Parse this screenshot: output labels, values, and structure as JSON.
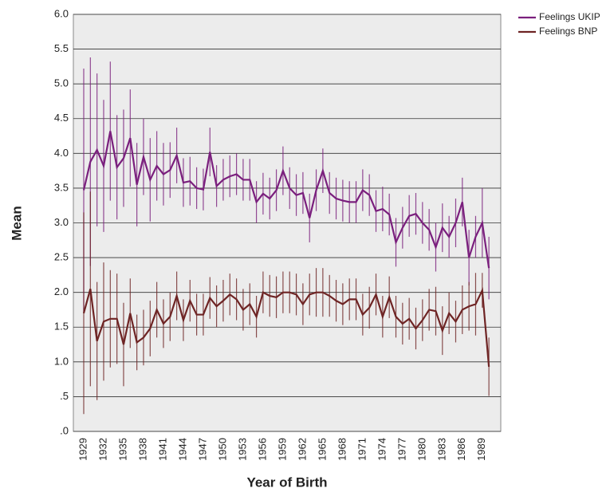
{
  "chart_data": {
    "type": "line",
    "xlabel": "Year of Birth",
    "ylabel": "Mean",
    "categories": [
      "1929",
      null,
      null,
      "1932",
      null,
      null,
      "1935",
      null,
      null,
      "1938",
      null,
      null,
      "1941",
      null,
      null,
      "1944",
      null,
      null,
      "1947",
      null,
      null,
      "1950",
      null,
      null,
      "1953",
      null,
      null,
      "1956",
      null,
      null,
      "1959",
      null,
      null,
      "1962",
      null,
      null,
      "1965",
      null,
      null,
      "1968",
      null,
      null,
      "1971",
      null,
      null,
      "1974",
      null,
      null,
      "1977",
      null,
      null,
      "1980",
      null,
      null,
      "1983",
      null,
      null,
      "1986",
      null,
      null,
      "1989",
      null
    ],
    "ylim": [
      0,
      6
    ],
    "yticks": [
      {
        "value": 0,
        "label": ".0"
      },
      {
        "value": 0.5,
        "label": ".5"
      },
      {
        "value": 1,
        "label": "1.0"
      },
      {
        "value": 1.5,
        "label": "1.5"
      },
      {
        "value": 2,
        "label": "2.0"
      },
      {
        "value": 2.5,
        "label": "2.5"
      },
      {
        "value": 3,
        "label": "3.0"
      },
      {
        "value": 3.5,
        "label": "3.5"
      },
      {
        "value": 4,
        "label": "4.0"
      },
      {
        "value": 4.5,
        "label": "4.5"
      },
      {
        "value": 5,
        "label": "5.0"
      },
      {
        "value": 5.5,
        "label": "5.5"
      },
      {
        "value": 6,
        "label": "6.0"
      }
    ],
    "grid": true,
    "legend": "upper right",
    "series": [
      {
        "name": "Feelings UKIP",
        "color": "#7a1f7d",
        "values": [
          3.47,
          3.88,
          4.05,
          3.82,
          4.32,
          3.8,
          3.93,
          4.22,
          3.55,
          3.95,
          3.62,
          3.82,
          3.7,
          3.76,
          3.97,
          3.58,
          3.6,
          3.5,
          3.48,
          4.02,
          3.53,
          3.62,
          3.67,
          3.7,
          3.62,
          3.62,
          3.3,
          3.42,
          3.35,
          3.47,
          3.75,
          3.5,
          3.4,
          3.43,
          3.07,
          3.47,
          3.75,
          3.43,
          3.35,
          3.32,
          3.3,
          3.3,
          3.47,
          3.4,
          3.17,
          3.2,
          3.12,
          2.72,
          2.93,
          3.1,
          3.13,
          3.0,
          2.9,
          2.65,
          2.93,
          2.8,
          3.0,
          3.3,
          2.5,
          2.8,
          3.0,
          2.35
        ],
        "errors": [
          1.75,
          1.5,
          1.1,
          0.95,
          1.0,
          0.75,
          0.7,
          0.7,
          0.6,
          0.55,
          0.6,
          0.5,
          0.45,
          0.4,
          0.4,
          0.35,
          0.35,
          0.3,
          0.3,
          0.35,
          0.3,
          0.3,
          0.3,
          0.3,
          0.3,
          0.3,
          0.3,
          0.3,
          0.3,
          0.3,
          0.35,
          0.3,
          0.3,
          0.3,
          0.35,
          0.3,
          0.32,
          0.3,
          0.3,
          0.3,
          0.3,
          0.3,
          0.3,
          0.3,
          0.3,
          0.32,
          0.3,
          0.35,
          0.3,
          0.3,
          0.3,
          0.3,
          0.3,
          0.35,
          0.35,
          0.3,
          0.35,
          0.35,
          0.4,
          0.3,
          0.5,
          0.45
        ]
      },
      {
        "name": "Feelings BNP",
        "color": "#6e2424",
        "values": [
          1.7,
          2.05,
          1.3,
          1.58,
          1.62,
          1.62,
          1.25,
          1.7,
          1.28,
          1.35,
          1.48,
          1.75,
          1.55,
          1.65,
          1.95,
          1.6,
          1.88,
          1.68,
          1.68,
          1.92,
          1.8,
          1.88,
          1.97,
          1.9,
          1.75,
          1.83,
          1.65,
          2.0,
          1.95,
          1.93,
          2.0,
          2.0,
          1.97,
          1.83,
          1.97,
          2.0,
          2.0,
          1.95,
          1.88,
          1.83,
          1.9,
          1.9,
          1.68,
          1.78,
          1.97,
          1.65,
          1.93,
          1.65,
          1.55,
          1.62,
          1.48,
          1.6,
          1.75,
          1.73,
          1.45,
          1.7,
          1.58,
          1.75,
          1.8,
          1.83,
          2.03,
          0.93
        ],
        "errors": [
          1.45,
          1.4,
          0.85,
          0.85,
          0.7,
          0.65,
          0.6,
          0.5,
          0.4,
          0.4,
          0.4,
          0.4,
          0.35,
          0.35,
          0.35,
          0.3,
          0.3,
          0.3,
          0.3,
          0.3,
          0.3,
          0.3,
          0.3,
          0.3,
          0.3,
          0.3,
          0.3,
          0.3,
          0.3,
          0.3,
          0.3,
          0.3,
          0.3,
          0.3,
          0.3,
          0.35,
          0.35,
          0.3,
          0.3,
          0.3,
          0.3,
          0.3,
          0.3,
          0.3,
          0.3,
          0.3,
          0.3,
          0.3,
          0.3,
          0.3,
          0.3,
          0.3,
          0.3,
          0.35,
          0.35,
          0.3,
          0.3,
          0.35,
          0.35,
          0.45,
          0.25,
          0.42
        ]
      }
    ]
  }
}
